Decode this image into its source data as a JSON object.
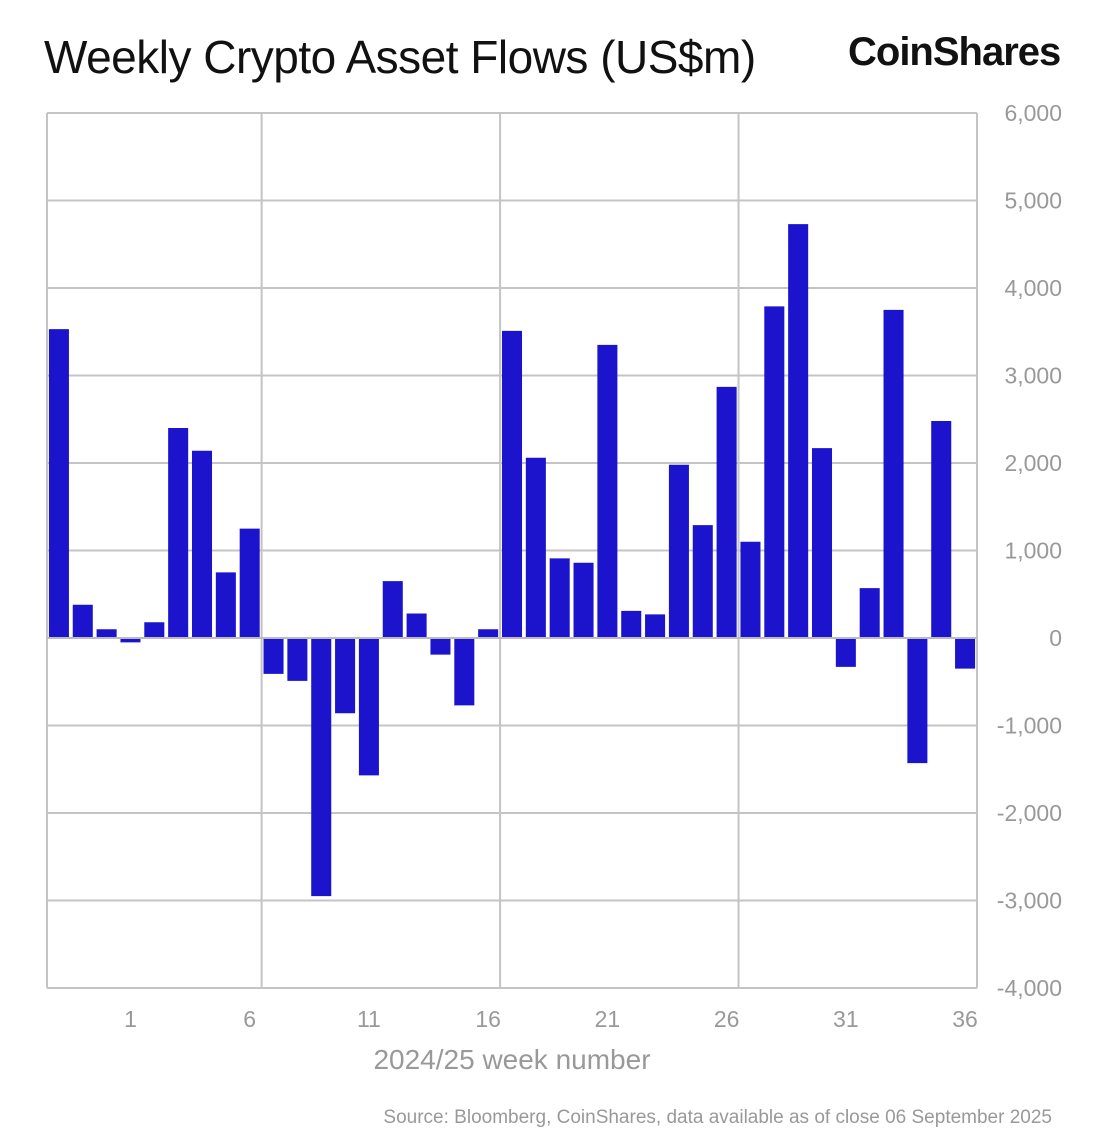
{
  "chart_data": {
    "type": "bar",
    "title": "Weekly Crypto Asset Flows (US$m)",
    "logo": "CoinShares",
    "xlabel": "2024/25 week number",
    "ylabel": "",
    "source": "Source: Bloomberg, CoinShares, data available as of close 06 September 2025",
    "ylim": [
      -4000,
      6000
    ],
    "yticks": [
      -4000,
      -3000,
      -2000,
      -1000,
      0,
      1000,
      2000,
      3000,
      4000,
      5000,
      6000
    ],
    "ytick_labels": [
      "-4,000",
      "-3,000",
      "-2,000",
      "-1,000",
      "0",
      "1,000",
      "2,000",
      "3,000",
      "4,000",
      "5,000",
      "6,000"
    ],
    "xticks": [
      1,
      6,
      11,
      16,
      21,
      26,
      31,
      36
    ],
    "xtick_labels": [
      "1",
      "6",
      "11",
      "16",
      "21",
      "26",
      "31",
      "36"
    ],
    "grid": true,
    "bar_color": "#1c14cc",
    "x": [
      -2,
      -1,
      0,
      1,
      2,
      3,
      4,
      5,
      6,
      7,
      8,
      9,
      10,
      11,
      12,
      13,
      14,
      15,
      16,
      17,
      18,
      19,
      20,
      21,
      22,
      23,
      24,
      25,
      26,
      27,
      28,
      29,
      30,
      31,
      32,
      33,
      34,
      35,
      36
    ],
    "values": [
      3530,
      380,
      100,
      -50,
      180,
      2400,
      2140,
      750,
      1250,
      -410,
      -490,
      -2950,
      -860,
      -1570,
      650,
      280,
      -190,
      -770,
      100,
      3510,
      2060,
      910,
      860,
      3350,
      310,
      270,
      1980,
      1290,
      2870,
      1100,
      3790,
      4730,
      2170,
      -330,
      570,
      3750,
      -1430,
      2480,
      -350
    ]
  }
}
